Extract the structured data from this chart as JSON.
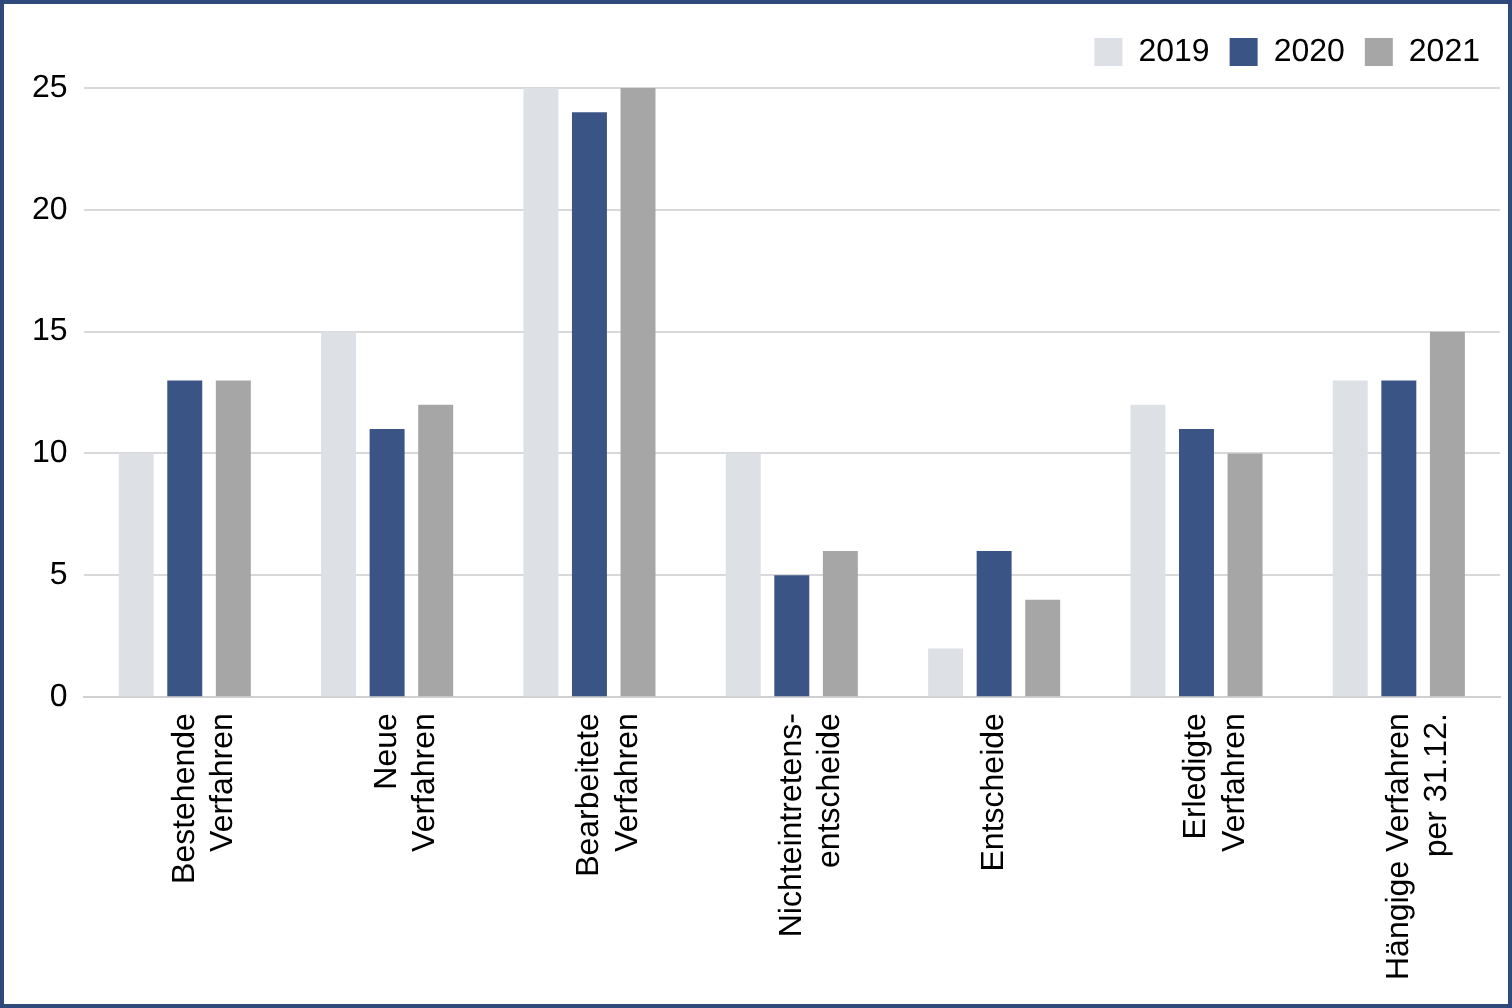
{
  "chart_data": {
    "type": "bar",
    "categories": [
      "Bestehende\nVerfahren",
      "Neue\nVerfahren",
      "Bearbeitete\nVerfahren",
      "Nichteintretens-\nentscheide",
      "Entscheide",
      "Erledigte\nVerfahren",
      "Hängige Verfahren\nper 31.12."
    ],
    "series": [
      {
        "name": "2019",
        "color": "#dde1e6",
        "values": [
          10,
          15,
          25,
          10,
          2,
          12,
          13
        ]
      },
      {
        "name": "2020",
        "color": "#3b5486",
        "values": [
          13,
          11,
          24,
          5,
          6,
          11,
          13
        ]
      },
      {
        "name": "2021",
        "color": "#a6a6a6",
        "values": [
          13,
          12,
          25,
          6,
          4,
          10,
          15
        ]
      }
    ],
    "ylim": [
      0,
      25
    ],
    "yticks": [
      0,
      5,
      10,
      15,
      20,
      25
    ],
    "grid": "y",
    "legend": "top right"
  }
}
